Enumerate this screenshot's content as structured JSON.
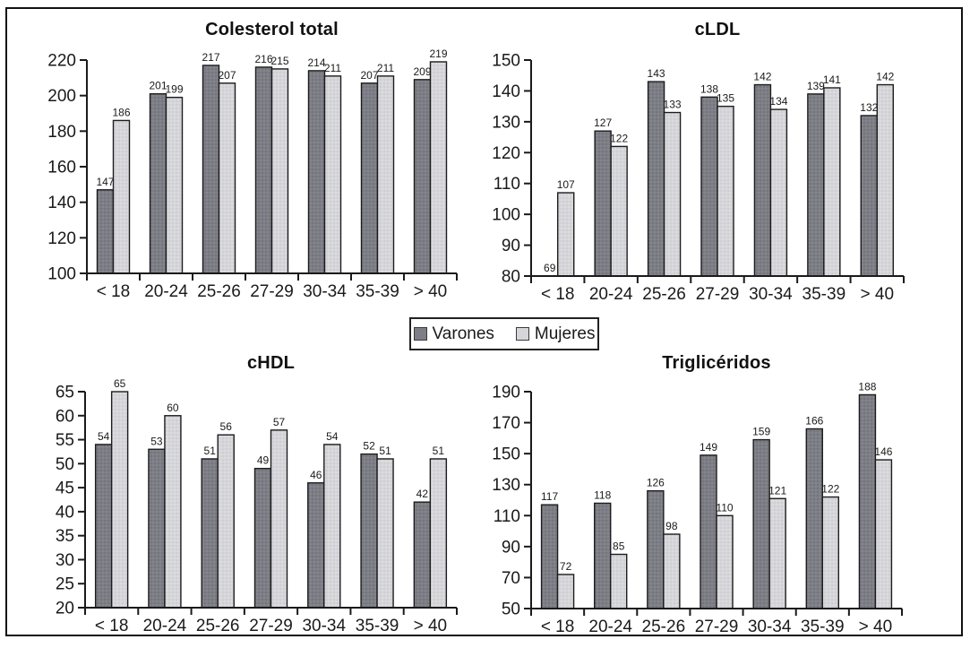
{
  "figure": {
    "legend": {
      "position": "center-between-rows",
      "items": [
        {
          "label": "Varones",
          "color": "#7e7e86"
        },
        {
          "label": "Mujeres",
          "color": "#d6d6da"
        }
      ]
    },
    "colors": {
      "bar_stroke": "#1c1c1c",
      "axis": "#1a1a1a",
      "text": "#1a1a1a",
      "background": "#ffffff"
    }
  },
  "chart_data": [
    {
      "type": "bar",
      "title": "Colesterol total",
      "categories": [
        "< 18",
        "20-24",
        "25-26",
        "27-29",
        "30-34",
        "35-39",
        "> 40"
      ],
      "series": [
        {
          "name": "Varones",
          "values": [
            147,
            201,
            217,
            216,
            214,
            207,
            209
          ]
        },
        {
          "name": "Mujeres",
          "values": [
            186,
            199,
            207,
            215,
            211,
            211,
            219
          ]
        }
      ],
      "ylim": [
        100,
        220
      ],
      "ytick_step": 20,
      "grid": false,
      "value_labels": true
    },
    {
      "type": "bar",
      "title": "cLDL",
      "categories": [
        "< 18",
        "20-24",
        "25-26",
        "27-29",
        "30-34",
        "35-39",
        "> 40"
      ],
      "series": [
        {
          "name": "Varones",
          "values": [
            69,
            127,
            143,
            138,
            142,
            139,
            132
          ]
        },
        {
          "name": "Mujeres",
          "values": [
            107,
            122,
            133,
            135,
            134,
            141,
            142
          ]
        }
      ],
      "ylim": [
        80,
        150
      ],
      "ytick_step": 10,
      "grid": false,
      "value_labels": true
    },
    {
      "type": "bar",
      "title": "cHDL",
      "categories": [
        "< 18",
        "20-24",
        "25-26",
        "27-29",
        "30-34",
        "35-39",
        "> 40"
      ],
      "series": [
        {
          "name": "Varones",
          "values": [
            54,
            53,
            51,
            49,
            46,
            52,
            42
          ]
        },
        {
          "name": "Mujeres",
          "values": [
            65,
            60,
            56,
            57,
            54,
            51,
            51
          ]
        }
      ],
      "ylim": [
        20,
        65
      ],
      "ytick_step": 5,
      "grid": false,
      "value_labels": true
    },
    {
      "type": "bar",
      "title": "Triglicéridos",
      "categories": [
        "< 18",
        "20-24",
        "25-26",
        "27-29",
        "30-34",
        "35-39",
        "> 40"
      ],
      "series": [
        {
          "name": "Varones",
          "values": [
            117,
            118,
            126,
            149,
            159,
            166,
            188
          ]
        },
        {
          "name": "Mujeres",
          "values": [
            72,
            85,
            98,
            110,
            121,
            122,
            146
          ]
        }
      ],
      "ylim": [
        50,
        190
      ],
      "ytick_step": 20,
      "grid": false,
      "value_labels": true
    }
  ]
}
